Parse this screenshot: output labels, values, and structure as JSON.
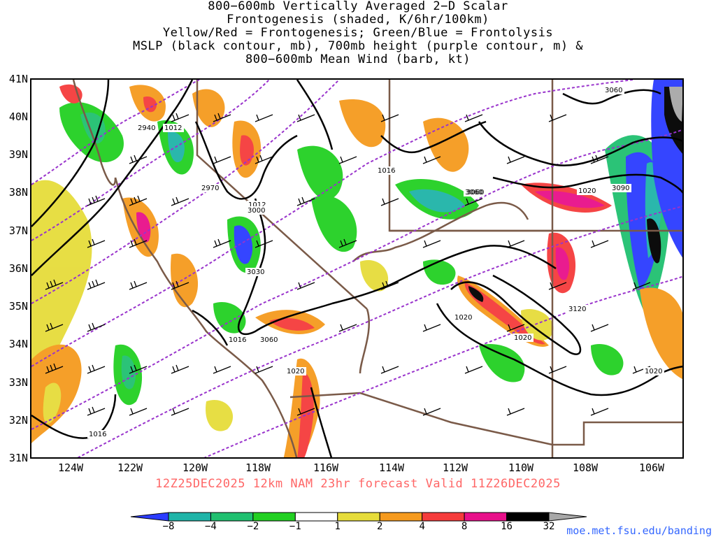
{
  "title_lines": [
    "800−600mb Vertically Averaged 2−D Scalar",
    "Frontogenesis (shaded, K/6hr/100km)",
    "Yellow/Red = Frontogenesis;  Green/Blue = Frontolysis",
    "MSLP (black contour, mb), 700mb height (purple contour, m) &",
    "800−600mb Mean Wind (barb, kt)"
  ],
  "lat_labels": [
    "41N",
    "40N",
    "39N",
    "38N",
    "37N",
    "36N",
    "35N",
    "34N",
    "33N",
    "32N",
    "31N"
  ],
  "lon_labels": [
    "124W",
    "122W",
    "120W",
    "118W",
    "116W",
    "114W",
    "112W",
    "110W",
    "108W",
    "106W"
  ],
  "valid_line": "12Z25DEC2025  12km  NAM  23hr  forecast  Valid  11Z26DEC2025",
  "colorbar": {
    "ticks": [
      "−8",
      "−4",
      "−2",
      "−1",
      "1",
      "2",
      "4",
      "8",
      "16",
      "32"
    ],
    "colors": [
      "#2b3cff",
      "#1fb4a8",
      "#20c070",
      "#22d022",
      "#ffffff",
      "#e6dc3a",
      "#f59a1e",
      "#f53c3c",
      "#e8108a",
      "#000000",
      "#a8a8a8"
    ]
  },
  "contour_labels": {
    "mslp": [
      "1012",
      "1016",
      "1020",
      "1020",
      "1020",
      "1020",
      "1016",
      "1012",
      "1016",
      "1020"
    ],
    "height": [
      "2940",
      "2970",
      "3000",
      "3030",
      "3060",
      "3060",
      "3060",
      "3090",
      "3120",
      "3060"
    ]
  },
  "colors": {
    "mslp": "#000000",
    "height": "#9933cc",
    "border": "#7a5a48",
    "valid_text": "#ff6666",
    "credit": "#3366ff"
  },
  "credit": "moe.met.fsu.edu/banding"
}
